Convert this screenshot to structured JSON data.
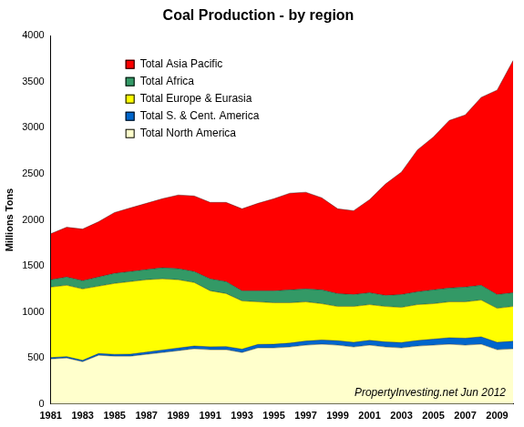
{
  "chart_data": {
    "type": "area",
    "title": "Coal Production - by region",
    "y_label": "Millions Tons",
    "annotations": [
      "PropertyInvesting.net Jun 2012"
    ],
    "categories": [
      "1981",
      null,
      "1983",
      null,
      "1985",
      null,
      "1987",
      null,
      "1989",
      null,
      "1991",
      null,
      "1993",
      null,
      "1995",
      null,
      "1997",
      null,
      "1999",
      null,
      "2001",
      null,
      "2003",
      null,
      "2005",
      null,
      "2007",
      null,
      "2009",
      null
    ],
    "series": [
      {
        "name": "Total Asia Pacific",
        "color": "#ff0000",
        "values": [
          500,
          540,
          560,
          600,
          660,
          690,
          720,
          750,
          800,
          820,
          830,
          860,
          890,
          950,
          1000,
          1050,
          1050,
          1000,
          920,
          910,
          1010,
          1210,
          1330,
          1540,
          1660,
          1820,
          1870,
          2040,
          2220,
          2520
        ]
      },
      {
        "name": "Total Africa",
        "color": "#339966",
        "values": [
          80,
          90,
          90,
          100,
          110,
          110,
          110,
          120,
          120,
          120,
          130,
          130,
          110,
          120,
          130,
          140,
          140,
          150,
          140,
          130,
          130,
          120,
          140,
          140,
          150,
          150,
          160,
          160,
          150,
          150
        ]
      },
      {
        "name": "Total Europe & Eurasia",
        "color": "#ffff00",
        "values": [
          765,
          775,
          775,
          732,
          770,
          788,
          786,
          774,
          742,
          690,
          608,
          576,
          524,
          462,
          450,
          438,
          426,
          394,
          372,
          390,
          388,
          385,
          382,
          390,
          385,
          390,
          395,
          400,
          370,
          378
        ]
      },
      {
        "name": "Total S. & Cent. America",
        "color": "#0066cc",
        "values": [
          15,
          15,
          15,
          18,
          20,
          22,
          24,
          26,
          28,
          30,
          32,
          34,
          36,
          38,
          40,
          42,
          44,
          46,
          48,
          50,
          52,
          55,
          58,
          60,
          65,
          70,
          75,
          80,
          80,
          82
        ]
      },
      {
        "name": "Total North America",
        "color": "#ffffcc",
        "values": [
          490,
          500,
          460,
          530,
          520,
          520,
          540,
          560,
          580,
          600,
          590,
          590,
          560,
          610,
          610,
          620,
          640,
          650,
          640,
          620,
          640,
          620,
          610,
          630,
          640,
          650,
          640,
          650,
          590,
          600
        ]
      }
    ],
    "ylim": [
      0,
      4000
    ],
    "yticks": [
      0,
      500,
      1000,
      1500,
      2000,
      2500,
      3000,
      3500,
      4000
    ],
    "stacked": true,
    "grid": false,
    "legend": "top-left"
  }
}
